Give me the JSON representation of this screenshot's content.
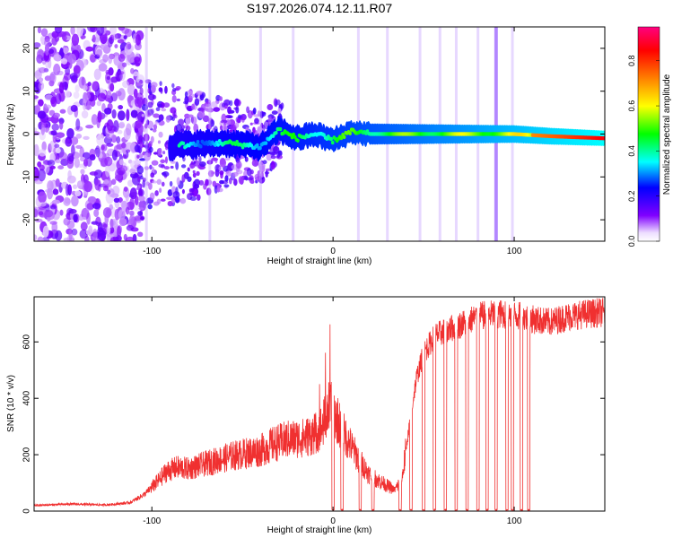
{
  "chart_data": [
    {
      "type": "heatmap",
      "title": "S197.2026.074.12.11.R07",
      "xlabel": "Height of straight line (km)",
      "ylabel": "Frequency (Hz)",
      "xlim": [
        -165,
        150
      ],
      "ylim": [
        -25,
        25
      ],
      "xticks": [
        -100,
        0,
        100
      ],
      "yticks": [
        -20,
        -10,
        0,
        10,
        20
      ],
      "xtick_labels": [
        "-100",
        "0",
        "100"
      ],
      "ytick_labels": [
        "-20",
        "-10",
        "0",
        "10",
        "20"
      ],
      "colorbar": {
        "label": "Normalized spectral amplitude",
        "range": [
          0,
          0.95
        ],
        "ticks": [
          0.0,
          0.2,
          0.4,
          0.6,
          0.8
        ],
        "tick_labels": [
          "0.0",
          "0.2",
          "0.4",
          "0.6",
          "0.8"
        ],
        "colors": [
          "#ffffff",
          "#8000ff",
          "#0000ff",
          "#00ffff",
          "#00ff00",
          "#ffff00",
          "#ff8000",
          "#ff0000",
          "#ff0080"
        ]
      },
      "ridge": {
        "description": "Dominant frequency near 0 Hz; amplitude rises with height",
        "frequency_hz": [
          [
            -80,
            -2.5
          ],
          [
            -60,
            -2.0
          ],
          [
            -40,
            -3.0
          ],
          [
            -30,
            1.0
          ],
          [
            -20,
            -1.0
          ],
          [
            -10,
            0.0
          ],
          [
            0,
            -1.5
          ],
          [
            10,
            0.5
          ],
          [
            20,
            0.0
          ],
          [
            40,
            0.0
          ],
          [
            60,
            0.0
          ],
          [
            80,
            0.0
          ],
          [
            100,
            0.0
          ],
          [
            120,
            -0.5
          ],
          [
            150,
            -1.0
          ]
        ]
      },
      "vertical_streaks_km": [
        -103,
        -68,
        -40,
        -22,
        14,
        30,
        48,
        59,
        68,
        80,
        90,
        99
      ]
    },
    {
      "type": "line",
      "xlabel": "Height of straight line (km)",
      "ylabel": "SNR (10 * v/v)",
      "xlim": [
        -165,
        150
      ],
      "ylim": [
        0,
        760
      ],
      "xticks": [
        -100,
        0,
        100
      ],
      "yticks": [
        0,
        200,
        400,
        600
      ],
      "xtick_labels": [
        "-100",
        "0",
        "100"
      ],
      "ytick_labels": [
        "0",
        "200",
        "400",
        "600"
      ],
      "line_color": "#f03030",
      "series": [
        {
          "name": "SNR",
          "x": [
            -165,
            -145,
            -125,
            -112,
            -104,
            -96,
            -92,
            -86,
            -80,
            -72,
            -64,
            -56,
            -48,
            -40,
            -32,
            -24,
            -16,
            -10,
            -6,
            -2,
            2,
            6,
            10,
            14,
            20,
            26,
            30,
            34,
            38,
            42,
            46,
            50,
            56,
            62,
            70,
            80,
            90,
            100,
            110,
            120,
            130,
            140,
            150
          ],
          "y": [
            20,
            25,
            22,
            30,
            60,
            110,
            140,
            155,
            150,
            165,
            180,
            195,
            205,
            215,
            240,
            255,
            260,
            275,
            300,
            370,
            330,
            275,
            230,
            185,
            130,
            105,
            90,
            75,
            110,
            300,
            470,
            560,
            620,
            640,
            660,
            690,
            700,
            695,
            680,
            670,
            690,
            700,
            705
          ]
        }
      ],
      "dropouts_km": [
        0,
        5,
        15,
        22,
        37,
        43,
        50,
        56,
        62,
        68,
        74,
        80,
        85,
        90,
        96,
        99,
        104,
        108
      ]
    }
  ]
}
